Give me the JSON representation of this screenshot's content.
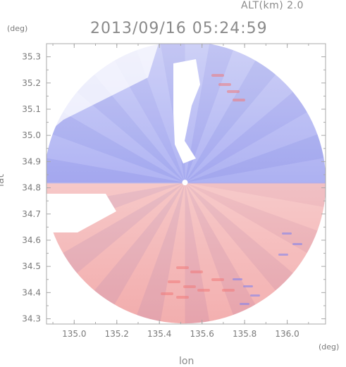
{
  "header": {
    "altitude": "ALT(km) 2.0",
    "timestamp": "2013/09/16 05:24:59"
  },
  "chart_data": {
    "type": "heatmap",
    "title": "2013/09/16 05:24:59",
    "subtitle": "ALT(km) 2.0",
    "xlabel": "lon",
    "ylabel": "lat",
    "xunit": "(deg)",
    "yunit": "(deg)",
    "xlim": [
      134.87,
      136.18
    ],
    "ylim": [
      34.28,
      35.35
    ],
    "x_ticks": [
      135.0,
      135.2,
      135.4,
      135.6,
      135.8,
      136.0
    ],
    "x_tick_labels": [
      "135.0",
      "135.2",
      "135.4",
      "135.6",
      "135.8",
      "136.0"
    ],
    "y_ticks": [
      34.3,
      34.4,
      34.5,
      34.6,
      34.7,
      34.8,
      34.9,
      35.0,
      35.1,
      35.2,
      35.3
    ],
    "y_tick_labels": [
      "34.3",
      "34.4",
      "34.5",
      "34.6",
      "34.7",
      "34.8",
      "34.9",
      "35.0",
      "35.1",
      "35.2",
      "35.3"
    ],
    "radar_center": {
      "lon": 135.52,
      "lat": 34.82
    },
    "colors": {
      "approaching": "#7a80f0",
      "receding": "#f07a7a",
      "frame": "#a8a8a8"
    },
    "grid": false,
    "legend": "none"
  }
}
